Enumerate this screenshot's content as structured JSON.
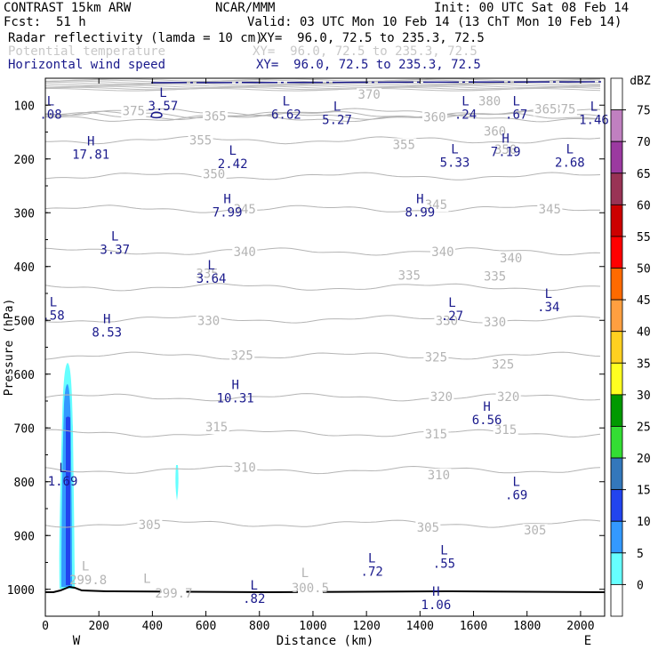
{
  "header": {
    "title": "CONTRAST 15km ARW",
    "center": "NCAR/MMM",
    "init": "Init: 00 UTC Sat 08 Feb 14",
    "fcst_label": "Fcst:",
    "fcst_value": "51 h",
    "valid": "Valid: 03 UTC Mon 10 Feb 14 (13 ChT Mon 10 Feb 14)",
    "fields": [
      {
        "name": "Radar reflectivity (lamda = 10 cm)",
        "xy": "XY=  96.0, 72.5 to 235.3, 72.5"
      },
      {
        "name": "Potential temperature",
        "xy": "XY=  96.0, 72.5 to 235.3, 72.5"
      },
      {
        "name": "Horizontal wind speed",
        "xy": "XY=  96.0, 72.5 to 235.3, 72.5"
      }
    ]
  },
  "chart_data": {
    "type": "cross-section",
    "xlabel": "Distance (km)",
    "ylabel": "Pressure (hPa)",
    "xlim": [
      0,
      2090
    ],
    "ylim": [
      1050,
      50
    ],
    "x_ticks": [
      0,
      200,
      400,
      600,
      800,
      1000,
      1200,
      1400,
      1600,
      1800,
      2000
    ],
    "y_ticks": [
      100,
      200,
      300,
      400,
      500,
      600,
      700,
      800,
      900,
      1000
    ],
    "x_end_labels": {
      "left": "W",
      "right": "E"
    },
    "colorbar": {
      "unit": "dBZ",
      "ticks": [
        "75",
        "70",
        "65",
        "60",
        "55",
        "50",
        "45",
        "40",
        "35",
        "30",
        "25",
        "20",
        "15",
        "10",
        "5",
        "0"
      ],
      "colors": [
        "#ffffff",
        "#c080c0",
        "#9b3aa0",
        "#993355",
        "#cc0000",
        "#ff0000",
        "#ff6a00",
        "#ff9f40",
        "#ffd020",
        "#ffff20",
        "#009900",
        "#33dd33",
        "#3377bb",
        "#2244ee",
        "#3399ff",
        "#66ffff",
        "#ffffff"
      ]
    },
    "theta_contours": [
      {
        "label": "375",
        "p": 113
      },
      {
        "label": "370",
        "p": 118
      },
      {
        "label": "365",
        "p": 120
      },
      {
        "label": "360",
        "p": 124
      },
      {
        "label": "355",
        "p": 165
      },
      {
        "label": "350",
        "p": 232
      },
      {
        "label": "345",
        "p": 293
      },
      {
        "label": "340",
        "p": 372
      },
      {
        "label": "335",
        "p": 438
      },
      {
        "label": "330",
        "p": 498
      },
      {
        "label": "325",
        "p": 566
      },
      {
        "label": "320",
        "p": 643
      },
      {
        "label": "315",
        "p": 710
      },
      {
        "label": "310",
        "p": 778
      },
      {
        "label": "305",
        "p": 878
      }
    ],
    "theta_labels": [
      {
        "text": "375",
        "x": 330,
        "p": 110
      },
      {
        "text": "370",
        "x": 1210,
        "p": 80
      },
      {
        "text": "380",
        "x": 1660,
        "p": 92
      },
      {
        "text": "375",
        "x": 1940,
        "p": 107
      },
      {
        "text": "365",
        "x": 635,
        "p": 120
      },
      {
        "text": "360",
        "x": 1455,
        "p": 122
      },
      {
        "text": "360",
        "x": 1680,
        "p": 148
      },
      {
        "text": "365",
        "x": 1870,
        "p": 107
      },
      {
        "text": "355",
        "x": 580,
        "p": 165
      },
      {
        "text": "355",
        "x": 1340,
        "p": 173
      },
      {
        "text": "350",
        "x": 1720,
        "p": 182
      },
      {
        "text": "350",
        "x": 630,
        "p": 228
      },
      {
        "text": "345",
        "x": 745,
        "p": 293
      },
      {
        "text": "345",
        "x": 1460,
        "p": 285
      },
      {
        "text": "345",
        "x": 1885,
        "p": 293
      },
      {
        "text": "340",
        "x": 745,
        "p": 372
      },
      {
        "text": "340",
        "x": 1485,
        "p": 372
      },
      {
        "text": "340",
        "x": 1740,
        "p": 384
      },
      {
        "text": "335",
        "x": 605,
        "p": 413
      },
      {
        "text": "335",
        "x": 1360,
        "p": 416
      },
      {
        "text": "335",
        "x": 1680,
        "p": 418
      },
      {
        "text": "330",
        "x": 610,
        "p": 500
      },
      {
        "text": "330",
        "x": 1500,
        "p": 500
      },
      {
        "text": "330",
        "x": 1680,
        "p": 503
      },
      {
        "text": "325",
        "x": 735,
        "p": 565
      },
      {
        "text": "325",
        "x": 1460,
        "p": 568
      },
      {
        "text": "325",
        "x": 1710,
        "p": 581
      },
      {
        "text": "320",
        "x": 1480,
        "p": 642
      },
      {
        "text": "320",
        "x": 1730,
        "p": 642
      },
      {
        "text": "315",
        "x": 640,
        "p": 698
      },
      {
        "text": "315",
        "x": 1460,
        "p": 711
      },
      {
        "text": "315",
        "x": 1720,
        "p": 703
      },
      {
        "text": "310",
        "x": 745,
        "p": 773
      },
      {
        "text": "310",
        "x": 1470,
        "p": 787
      },
      {
        "text": "305",
        "x": 390,
        "p": 880
      },
      {
        "text": "305",
        "x": 1430,
        "p": 885
      },
      {
        "text": "305",
        "x": 1830,
        "p": 890
      },
      {
        "text": "299.8",
        "x": 160,
        "p": 982
      },
      {
        "text": "299.7",
        "x": 480,
        "p": 1007
      },
      {
        "text": "300.5",
        "x": 990,
        "p": 997
      }
    ],
    "theta_L_marks": [
      {
        "x": 150,
        "p": 965
      },
      {
        "x": 380,
        "p": 988
      },
      {
        "x": 970,
        "p": 977
      }
    ],
    "wind_extrema": [
      {
        "type": "L",
        "value": ".08",
        "x": 20,
        "p": 100
      },
      {
        "type": "L",
        "value": "3.57",
        "x": 440,
        "p": 85
      },
      {
        "type": "L",
        "value": "6.62",
        "x": 900,
        "p": 100
      },
      {
        "type": "L",
        "value": "5.27",
        "x": 1090,
        "p": 110
      },
      {
        "type": "L",
        "value": ".24",
        "x": 1570,
        "p": 100
      },
      {
        "type": "L",
        "value": ".67",
        "x": 1760,
        "p": 100
      },
      {
        "type": "L",
        "value": "1.46",
        "x": 2050,
        "p": 110
      },
      {
        "type": "H",
        "value": "17.81",
        "x": 170,
        "p": 175
      },
      {
        "type": "L",
        "value": "2.42",
        "x": 700,
        "p": 192
      },
      {
        "type": "L",
        "value": "5.33",
        "x": 1530,
        "p": 190
      },
      {
        "type": "H",
        "value": "7.19",
        "x": 1720,
        "p": 170
      },
      {
        "type": "L",
        "value": "2.68",
        "x": 1960,
        "p": 190
      },
      {
        "type": "H",
        "value": "7.99",
        "x": 680,
        "p": 282
      },
      {
        "type": "H",
        "value": "8.99",
        "x": 1400,
        "p": 282
      },
      {
        "type": "L",
        "value": "3.37",
        "x": 260,
        "p": 352
      },
      {
        "type": "L",
        "value": "3.64",
        "x": 620,
        "p": 405
      },
      {
        "type": "L",
        "value": ".58",
        "x": 30,
        "p": 474
      },
      {
        "type": "L",
        "value": ".27",
        "x": 1520,
        "p": 475
      },
      {
        "type": "L",
        "value": ".34",
        "x": 1880,
        "p": 458
      },
      {
        "type": "H",
        "value": "8.53",
        "x": 230,
        "p": 505
      },
      {
        "type": "H",
        "value": "10.31",
        "x": 710,
        "p": 628
      },
      {
        "type": "H",
        "value": "6.56",
        "x": 1650,
        "p": 668
      },
      {
        "type": "L",
        "value": "1.69",
        "x": 65,
        "p": 782
      },
      {
        "type": "L",
        "value": ".69",
        "x": 1760,
        "p": 808
      },
      {
        "type": "L",
        "value": ".72",
        "x": 1220,
        "p": 950
      },
      {
        "type": "L",
        "value": ".55",
        "x": 1490,
        "p": 935
      },
      {
        "type": "L",
        "value": ".82",
        "x": 780,
        "p": 1000
      },
      {
        "type": "H",
        "value": "1.06",
        "x": 1460,
        "p": 1012
      }
    ]
  }
}
